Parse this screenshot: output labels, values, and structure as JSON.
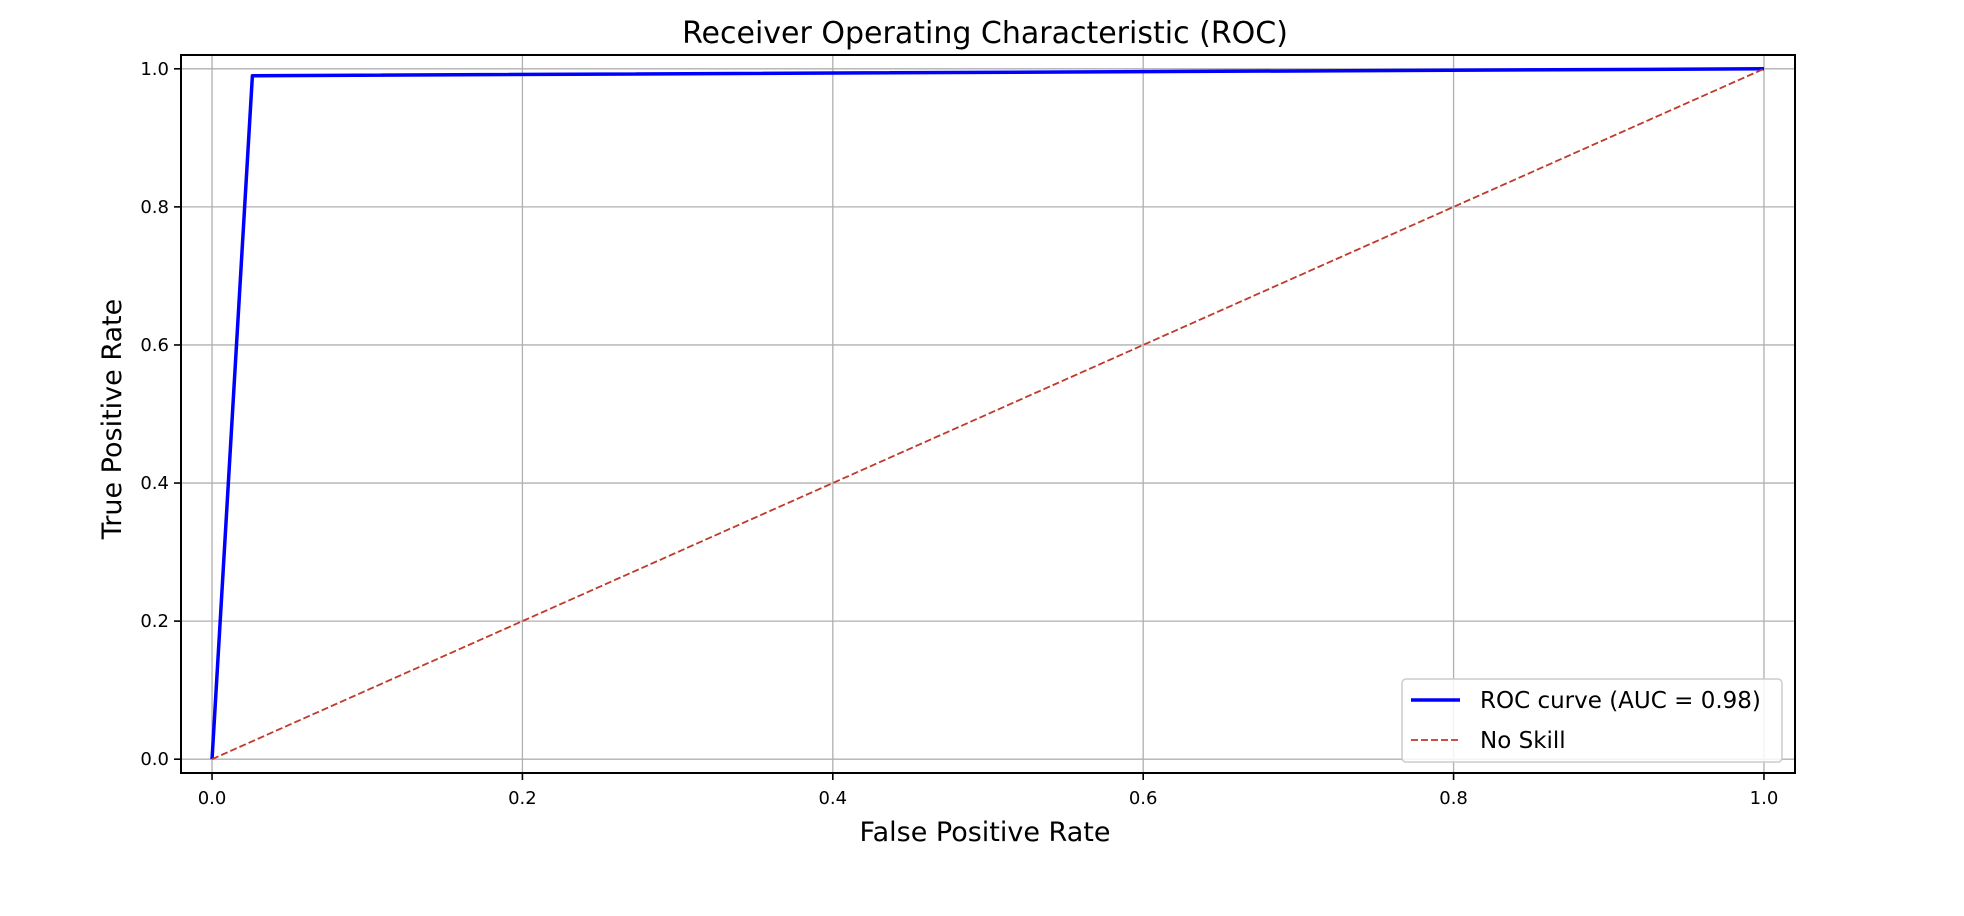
{
  "chart_data": {
    "type": "line",
    "title": "Receiver Operating Characteristic (ROC)",
    "xlabel": "False Positive Rate",
    "ylabel": "True Positive Rate",
    "xlim": [
      -0.02,
      1.02
    ],
    "ylim": [
      -0.02,
      1.02
    ],
    "xticks": [
      0.0,
      0.2,
      0.4,
      0.6,
      0.8,
      1.0
    ],
    "xtick_labels": [
      "0.0",
      "0.2",
      "0.4",
      "0.6",
      "0.8",
      "1.0"
    ],
    "yticks": [
      0.0,
      0.2,
      0.4,
      0.6,
      0.8,
      1.0
    ],
    "ytick_labels": [
      "0.0",
      "0.2",
      "0.4",
      "0.6",
      "0.8",
      "1.0"
    ],
    "grid": true,
    "legend_position": "lower-right",
    "series": [
      {
        "name": "ROC curve (AUC = 0.98)",
        "x": [
          0.0,
          0.026,
          1.0
        ],
        "y": [
          0.0,
          0.99,
          1.0
        ],
        "color": "#0000ff",
        "style": "solid"
      },
      {
        "name": "No Skill",
        "x": [
          0.0,
          1.0
        ],
        "y": [
          0.0,
          1.0
        ],
        "color": "#c0392b",
        "style": "dashed"
      }
    ]
  }
}
